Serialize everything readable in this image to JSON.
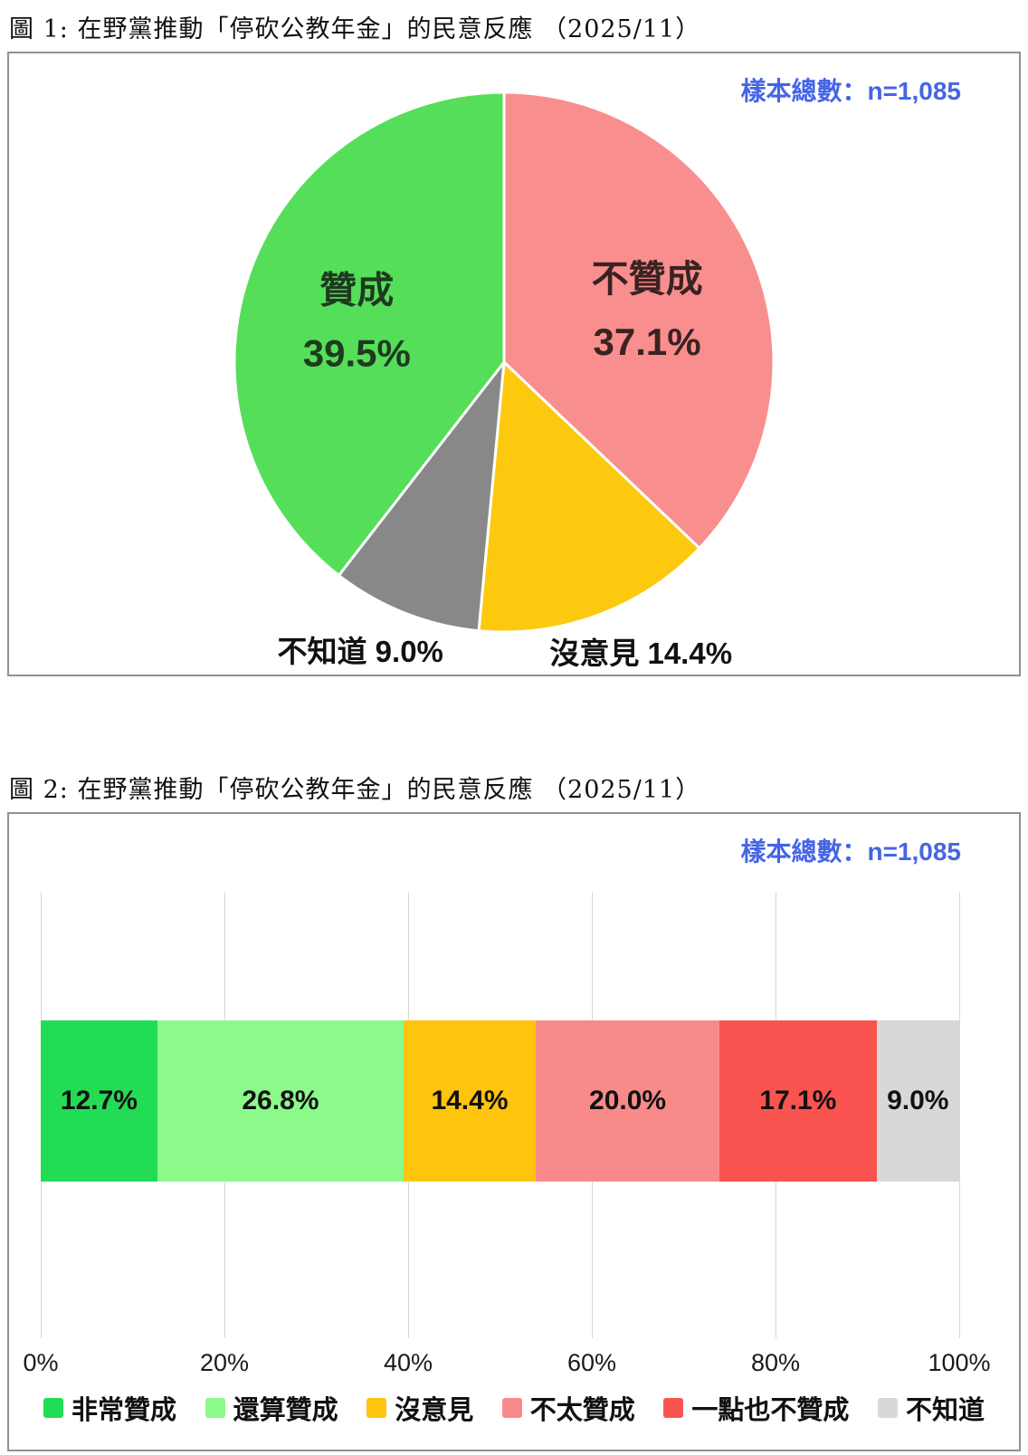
{
  "figure1": {
    "title": "圖 1: 在野黨推動「停砍公教年金」的民意反應 （2025/11）",
    "sample_note": "樣本總數：n=1,085"
  },
  "figure2": {
    "title": "圖 2: 在野黨推動「停砍公教年金」的民意反應 （2025/11）",
    "sample_note": "樣本總數：n=1,085"
  },
  "colors": {
    "sample_note_blue": "#4565E6",
    "box_border_gray": "#919191",
    "gridline_gray": "#d6d6d6"
  },
  "chart_data": [
    {
      "type": "pie",
      "figure_label": "圖 1",
      "title": "在野黨推動「停砍公教年金」的民意反應 （2025/11）",
      "sample_note": "樣本總數：n=1,085",
      "sample_size": 1085,
      "start": "top",
      "direction": "clockwise",
      "slices": [
        {
          "label": "不贊成",
          "value": 37.1,
          "color": "#F98E8E",
          "label_position": "inside",
          "text_color": "#3A2222"
        },
        {
          "label": "沒意見",
          "value": 14.4,
          "color": "#FDC90E",
          "label_position": "outside",
          "text_color": "#111111"
        },
        {
          "label": "不知道",
          "value": 9.0,
          "color": "#888888",
          "label_position": "outside",
          "text_color": "#111111"
        },
        {
          "label": "贊成",
          "value": 39.5,
          "color": "#55DE5A",
          "label_position": "inside",
          "text_color": "#1F3A1F"
        }
      ]
    },
    {
      "type": "bar",
      "subtype": "horizontal_stacked",
      "figure_label": "圖 2",
      "title": "在野黨推動「停砍公教年金」的民意反應 （2025/11）",
      "sample_note": "樣本總數：n=1,085",
      "sample_size": 1085,
      "categories": [
        "非常贊成",
        "還算贊成",
        "沒意見",
        "不太贊成",
        "一點也不贊成",
        "不知道"
      ],
      "values": [
        12.7,
        26.8,
        14.4,
        20.0,
        17.1,
        9.0
      ],
      "colors": [
        "#22DC55",
        "#8BFA8B",
        "#FFC40D",
        "#F98A8A",
        "#FA5450",
        "#D8D8D8"
      ],
      "x_ticks": [
        "0%",
        "20%",
        "40%",
        "60%",
        "80%",
        "100%"
      ],
      "xlim": [
        0,
        100
      ],
      "grid": "vertical",
      "legend_position": "bottom"
    }
  ]
}
